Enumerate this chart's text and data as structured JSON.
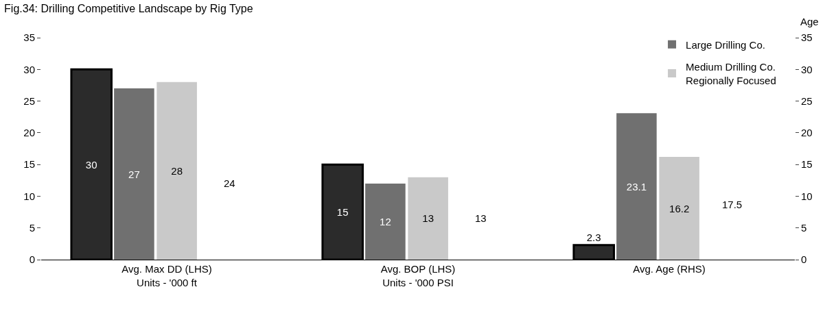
{
  "chart_data": {
    "type": "bar",
    "title": "Fig.34: Drilling Competitive Landscape by Rig Type",
    "y2label": "Age",
    "categories": [
      "Avg. Max DD (LHS)\nUnits - '000 ft",
      "Avg. BOP (LHS)\nUnits - '000 PSI",
      "Avg. Age (RHS)"
    ],
    "series": [
      {
        "color": "#2b2b2b",
        "values": [
          30,
          15,
          null
        ]
      },
      {
        "name": "Large Drilling Co.",
        "color": "#707070",
        "values": [
          27,
          12,
          null
        ]
      },
      {
        "name": "Medium Drilling Co.\nRegionally Focused",
        "color": "#c9c9c9",
        "values": [
          28,
          13,
          null
        ]
      },
      {
        "color": "#2b2b2b",
        "axis": "y2",
        "values": [
          null,
          null,
          2.3
        ]
      },
      {
        "color": "#707070",
        "axis": "y2",
        "values": [
          null,
          null,
          23.1
        ]
      },
      {
        "color": "#c9c9c9",
        "axis": "y2",
        "values": [
          null,
          null,
          16.2
        ]
      }
    ],
    "annotations": [
      "24",
      "13",
      "17.5"
    ],
    "ylim": [
      0,
      35
    ],
    "yticks": [
      0,
      5,
      10,
      15,
      20,
      25,
      30,
      35
    ],
    "y2lim": [
      0,
      35
    ],
    "y2ticks": [
      0,
      5,
      10,
      15,
      20,
      25,
      30,
      35
    ],
    "data_labels": true,
    "legend": "top right",
    "grid": false
  }
}
